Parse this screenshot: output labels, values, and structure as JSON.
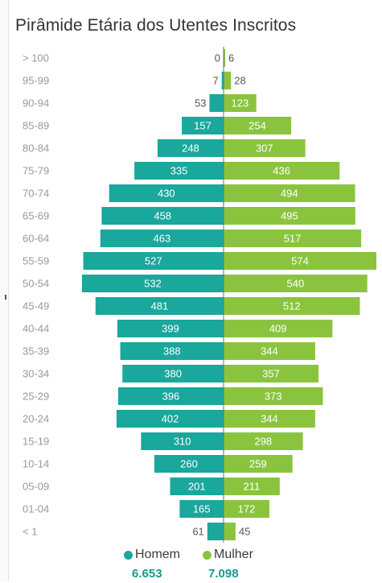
{
  "title": "Pirâmide Etária dos Utentes Inscritos",
  "colors": {
    "male": "#1aa79c",
    "female": "#8ac43f",
    "category_text": "#999999",
    "outside_text": "#555555",
    "inside_text": "#ffffff",
    "total_text": "#159b8e"
  },
  "legend": {
    "male_label": "Homem",
    "female_label": "Mulher"
  },
  "totals": {
    "male": "6.653",
    "female": "7.098"
  },
  "chart_data": {
    "type": "bar",
    "orientation": "horizontal-diverging",
    "categories": [
      "> 100",
      "95-99",
      "90-94",
      "85-89",
      "80-84",
      "75-79",
      "70-74",
      "65-69",
      "60-64",
      "55-59",
      "50-54",
      "45-49",
      "40-44",
      "35-39",
      "30-34",
      "25-29",
      "20-24",
      "15-19",
      "10-14",
      "05-09",
      "01-04",
      "< 1"
    ],
    "series": [
      {
        "name": "Homem",
        "side": "left",
        "values": [
          0,
          7,
          53,
          157,
          248,
          335,
          430,
          458,
          463,
          527,
          532,
          481,
          399,
          388,
          380,
          396,
          402,
          310,
          260,
          201,
          165,
          61
        ]
      },
      {
        "name": "Mulher",
        "side": "right",
        "values": [
          6,
          28,
          123,
          254,
          307,
          436,
          494,
          495,
          517,
          574,
          540,
          512,
          409,
          344,
          357,
          373,
          344,
          298,
          259,
          211,
          172,
          45
        ]
      }
    ],
    "xlim": [
      0,
      574
    ],
    "legend_position": "bottom"
  }
}
